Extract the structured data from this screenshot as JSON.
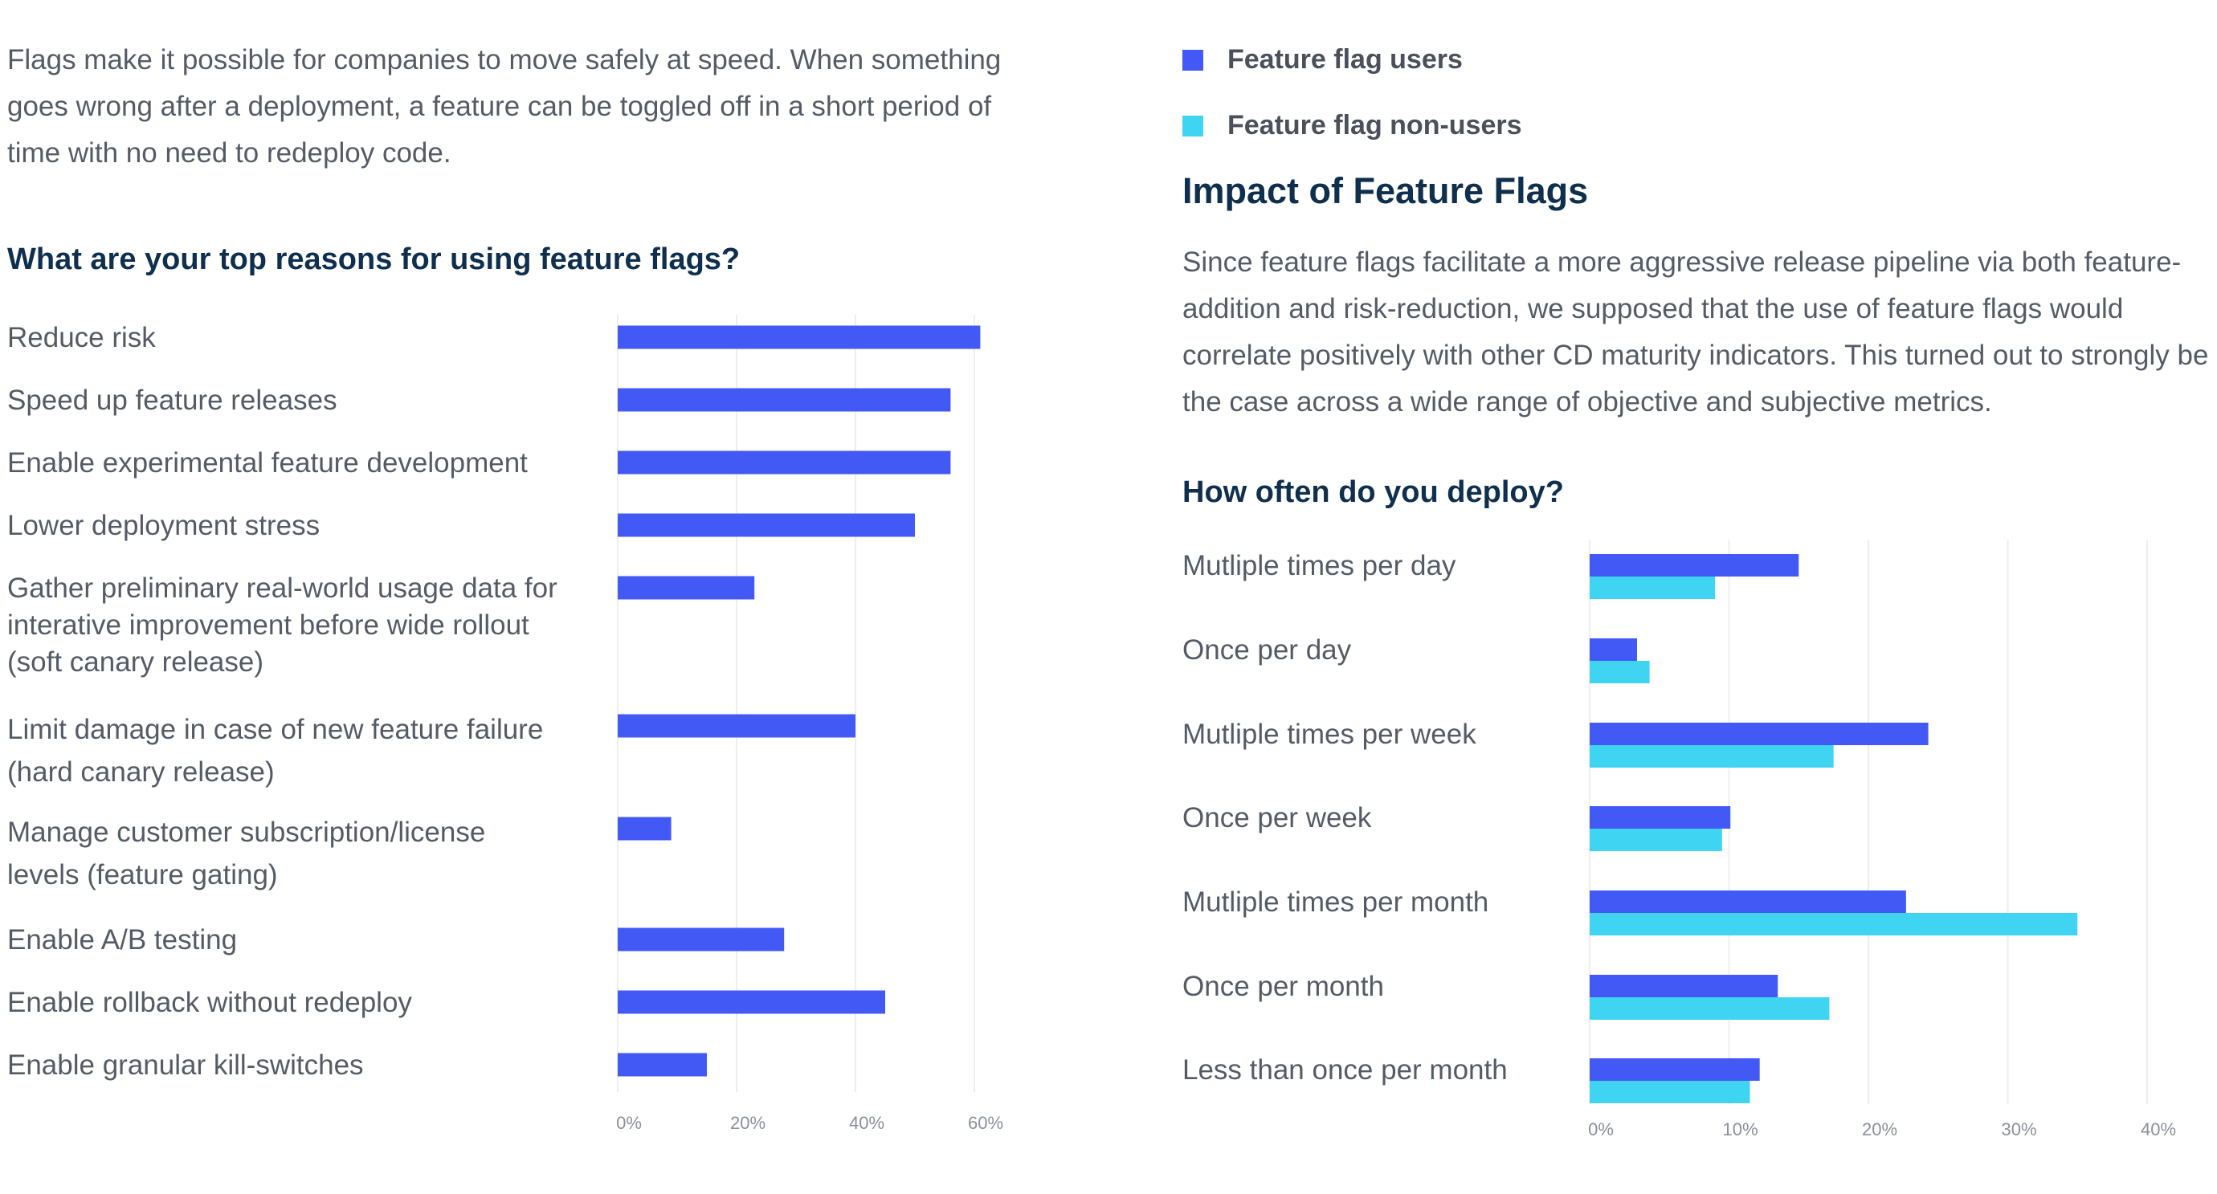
{
  "left": {
    "intro": "Flags make it possible for companies to move safely at speed. When something goes wrong after a deployment, a feature can be toggled off in a short period of time with no need to redeploy code.",
    "question": "What are your top reasons for using feature flags?"
  },
  "right": {
    "legend": [
      {
        "label": "Feature flag users",
        "color": "#4359f5"
      },
      {
        "label": "Feature flag non-users",
        "color": "#3fd5f2"
      }
    ],
    "impact_title": "Impact of Feature Flags",
    "impact_text": "Since feature flags facilitate a more aggressive release pipeline via both feature-addition and risk-reduction, we supposed that the use of feature flags would correlate positively with other CD maturity indicators. This turned out to strongly be the case across a wide range of objective and subjective metrics.",
    "question": "How often do you deploy?"
  },
  "chart_data": [
    {
      "type": "bar",
      "orientation": "horizontal",
      "title": "What are your top reasons for using feature flags?",
      "categories": [
        "Reduce risk",
        "Speed up feature releases",
        "Enable experimental feature development",
        "Lower deployment stress",
        "Gather preliminary real-world usage data for interative improvement before wide rollout (soft canary release)",
        "Limit damage in case of new feature failure (hard canary release)",
        "Manage customer subscription/license levels (feature gating)",
        "Enable A/B testing",
        "Enable rollback without redeploy",
        "Enable granular kill-switches"
      ],
      "values": [
        61,
        56,
        56,
        50,
        23,
        40,
        9,
        28,
        45,
        15
      ],
      "xlim": [
        0,
        60
      ],
      "ticks": [
        "0%",
        "20%",
        "40%",
        "60%"
      ],
      "color": "#4359f5",
      "grid": true
    },
    {
      "type": "bar",
      "orientation": "horizontal",
      "title": "How often do you deploy?",
      "categories": [
        "Mutliple times per day",
        "Once per day",
        "Mutliple times per week",
        "Once per week",
        "Mutliple times per month",
        "Once per month",
        "Less than once per month"
      ],
      "series": [
        {
          "name": "Feature flag users",
          "color": "#4359f5",
          "values": [
            15,
            3.4,
            24.3,
            10.1,
            22.7,
            13.5,
            12.2
          ]
        },
        {
          "name": "Feature flag non-users",
          "color": "#3fd5f2",
          "values": [
            9,
            4.3,
            17.5,
            9.5,
            35,
            17.2,
            11.5
          ]
        }
      ],
      "xlim": [
        0,
        40
      ],
      "ticks": [
        "0%",
        "10%",
        "20%",
        "30%",
        "40%"
      ],
      "grid": true,
      "legend": "top"
    }
  ]
}
